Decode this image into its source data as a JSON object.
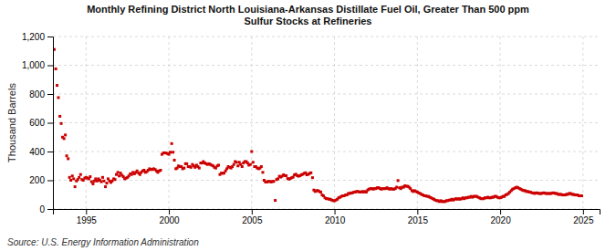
{
  "chart_data": {
    "type": "scatter",
    "title": "Monthly Refining District North Louisiana-Arkansas Distillate Fuel Oil, Greater Than 500 ppm\nSulfur Stocks at Refineries",
    "ylabel": "Thousand Barrels",
    "source": "Source: U.S. Energy Information Administration",
    "color": "#cc0000",
    "marker": "square",
    "grid": true,
    "xlim": [
      1993.0,
      2026.0
    ],
    "xticks": [
      1995,
      2000,
      2005,
      2010,
      2015,
      2020,
      2025
    ],
    "ylim": [
      0,
      1200
    ],
    "yticks": [
      0,
      200,
      400,
      600,
      800,
      {
        "value": 1000,
        "label": "1,000"
      },
      {
        "value": 1200,
        "label": "1,200"
      }
    ],
    "x": [
      1993.08,
      1993.17,
      1993.25,
      1993.33,
      1993.42,
      1993.5,
      1993.58,
      1993.67,
      1993.75,
      1993.83,
      1993.92,
      1994.0,
      1994.08,
      1994.17,
      1994.25,
      1994.33,
      1994.42,
      1994.5,
      1994.58,
      1994.67,
      1994.75,
      1994.83,
      1994.92,
      1995.0,
      1995.08,
      1995.17,
      1995.25,
      1995.33,
      1995.42,
      1995.5,
      1995.58,
      1995.67,
      1995.75,
      1995.83,
      1995.92,
      1996.0,
      1996.08,
      1996.17,
      1996.25,
      1996.33,
      1996.42,
      1996.5,
      1996.58,
      1996.67,
      1996.75,
      1996.83,
      1996.92,
      1997.0,
      1997.08,
      1997.17,
      1997.25,
      1997.33,
      1997.42,
      1997.5,
      1997.58,
      1997.67,
      1997.75,
      1997.83,
      1997.92,
      1998.0,
      1998.08,
      1998.17,
      1998.25,
      1998.33,
      1998.42,
      1998.5,
      1998.58,
      1998.67,
      1998.75,
      1998.83,
      1998.92,
      1999.0,
      1999.08,
      1999.17,
      1999.25,
      1999.33,
      1999.42,
      1999.5,
      1999.58,
      1999.67,
      1999.75,
      1999.83,
      1999.92,
      2000.0,
      2000.08,
      2000.17,
      2000.25,
      2000.33,
      2000.42,
      2000.5,
      2000.58,
      2000.67,
      2000.75,
      2000.83,
      2000.92,
      2001.0,
      2001.08,
      2001.17,
      2001.25,
      2001.33,
      2001.42,
      2001.5,
      2001.58,
      2001.67,
      2001.75,
      2001.83,
      2001.92,
      2002.0,
      2002.08,
      2002.17,
      2002.25,
      2002.33,
      2002.42,
      2002.5,
      2002.58,
      2002.67,
      2002.75,
      2002.83,
      2002.92,
      2003.0,
      2003.08,
      2003.17,
      2003.25,
      2003.33,
      2003.42,
      2003.5,
      2003.58,
      2003.67,
      2003.75,
      2003.83,
      2003.92,
      2004.0,
      2004.08,
      2004.17,
      2004.25,
      2004.33,
      2004.42,
      2004.5,
      2004.58,
      2004.67,
      2004.75,
      2004.83,
      2004.92,
      2005.0,
      2005.08,
      2005.17,
      2005.25,
      2005.33,
      2005.42,
      2005.5,
      2005.58,
      2005.67,
      2005.75,
      2005.83,
      2005.92,
      2006.0,
      2006.08,
      2006.17,
      2006.25,
      2006.33,
      2006.42,
      2006.5,
      2006.58,
      2006.67,
      2006.75,
      2006.83,
      2006.92,
      2007.0,
      2007.08,
      2007.17,
      2007.25,
      2007.33,
      2007.42,
      2007.5,
      2007.58,
      2007.67,
      2007.75,
      2007.83,
      2007.92,
      2008.0,
      2008.08,
      2008.17,
      2008.25,
      2008.33,
      2008.42,
      2008.5,
      2008.58,
      2008.67,
      2008.75,
      2008.83,
      2008.92,
      2009.0,
      2009.08,
      2009.17,
      2009.25,
      2009.33,
      2009.42,
      2009.5,
      2009.58,
      2009.67,
      2009.75,
      2009.83,
      2009.92,
      2010.0,
      2010.08,
      2010.17,
      2010.25,
      2010.33,
      2010.42,
      2010.5,
      2010.58,
      2010.67,
      2010.75,
      2010.83,
      2010.92,
      2011.0,
      2011.08,
      2011.17,
      2011.25,
      2011.33,
      2011.42,
      2011.5,
      2011.58,
      2011.67,
      2011.75,
      2011.83,
      2011.92,
      2012.0,
      2012.08,
      2012.17,
      2012.25,
      2012.33,
      2012.42,
      2012.5,
      2012.58,
      2012.67,
      2012.75,
      2012.83,
      2012.92,
      2013.0,
      2013.08,
      2013.17,
      2013.25,
      2013.33,
      2013.42,
      2013.5,
      2013.58,
      2013.67,
      2013.75,
      2013.83,
      2013.92,
      2014.0,
      2014.08,
      2014.17,
      2014.25,
      2014.33,
      2014.42,
      2014.5,
      2014.58,
      2014.67,
      2014.75,
      2014.83,
      2014.92,
      2015.0,
      2015.08,
      2015.17,
      2015.25,
      2015.33,
      2015.42,
      2015.5,
      2015.58,
      2015.67,
      2015.75,
      2015.83,
      2015.92,
      2016.0,
      2016.08,
      2016.17,
      2016.25,
      2016.33,
      2016.42,
      2016.5,
      2016.58,
      2016.67,
      2016.75,
      2016.83,
      2016.92,
      2017.0,
      2017.08,
      2017.17,
      2017.25,
      2017.33,
      2017.42,
      2017.5,
      2017.58,
      2017.67,
      2017.75,
      2017.83,
      2017.92,
      2018.0,
      2018.08,
      2018.17,
      2018.25,
      2018.33,
      2018.42,
      2018.5,
      2018.58,
      2018.67,
      2018.75,
      2018.83,
      2018.92,
      2019.0,
      2019.08,
      2019.17,
      2019.25,
      2019.33,
      2019.42,
      2019.5,
      2019.58,
      2019.67,
      2019.75,
      2019.83,
      2019.92,
      2020.0,
      2020.08,
      2020.17,
      2020.25,
      2020.33,
      2020.42,
      2020.5,
      2020.58,
      2020.67,
      2020.75,
      2020.83,
      2020.92,
      2021.0,
      2021.08,
      2021.17,
      2021.25,
      2021.33,
      2021.42,
      2021.5,
      2021.58,
      2021.67,
      2021.75,
      2021.83,
      2021.92,
      2022.0,
      2022.08,
      2022.17,
      2022.25,
      2022.33,
      2022.42,
      2022.5,
      2022.58,
      2022.67,
      2022.75,
      2022.83,
      2022.92,
      2023.0,
      2023.08,
      2023.17,
      2023.25,
      2023.33,
      2023.42,
      2023.5,
      2023.58,
      2023.67,
      2023.75,
      2023.83,
      2023.92,
      2024.0,
      2024.08,
      2024.17,
      2024.25,
      2024.33,
      2024.42,
      2024.5,
      2024.58,
      2024.67,
      2024.75,
      2024.83,
      2024.92
    ],
    "values": [
      1110,
      975,
      860,
      775,
      645,
      595,
      500,
      490,
      515,
      370,
      350,
      220,
      200,
      230,
      210,
      155,
      195,
      205,
      220,
      240,
      205,
      200,
      215,
      220,
      215,
      210,
      225,
      190,
      175,
      195,
      210,
      195,
      210,
      200,
      190,
      220,
      195,
      155,
      180,
      210,
      195,
      185,
      195,
      210,
      205,
      240,
      255,
      230,
      250,
      235,
      225,
      210,
      215,
      220,
      230,
      245,
      240,
      255,
      245,
      255,
      265,
      250,
      240,
      255,
      265,
      270,
      255,
      260,
      270,
      280,
      275,
      275,
      280,
      275,
      265,
      255,
      265,
      270,
      380,
      390,
      390,
      390,
      385,
      380,
      395,
      455,
      395,
      340,
      280,
      285,
      300,
      295,
      295,
      280,
      285,
      315,
      315,
      295,
      295,
      290,
      310,
      300,
      290,
      305,
      295,
      285,
      320,
      320,
      330,
      320,
      315,
      310,
      315,
      310,
      305,
      300,
      290,
      285,
      300,
      305,
      240,
      250,
      248,
      250,
      265,
      280,
      295,
      290,
      285,
      295,
      310,
      330,
      325,
      300,
      325,
      310,
      295,
      320,
      330,
      330,
      320,
      305,
      310,
      400,
      325,
      295,
      295,
      285,
      280,
      285,
      295,
      255,
      200,
      188,
      188,
      192,
      192,
      188,
      192,
      192,
      60,
      205,
      210,
      228,
      222,
      228,
      238,
      232,
      232,
      212,
      208,
      212,
      218,
      222,
      238,
      242,
      232,
      228,
      232,
      238,
      242,
      248,
      252,
      238,
      242,
      248,
      252,
      218,
      132,
      122,
      128,
      128,
      122,
      118,
      98,
      92,
      78,
      72,
      72,
      68,
      68,
      62,
      58,
      58,
      62,
      68,
      78,
      82,
      88,
      92,
      92,
      98,
      98,
      108,
      108,
      112,
      112,
      118,
      118,
      122,
      122,
      118,
      118,
      122,
      118,
      122,
      118,
      132,
      138,
      142,
      142,
      138,
      142,
      142,
      148,
      148,
      142,
      138,
      142,
      142,
      142,
      148,
      142,
      138,
      142,
      138,
      138,
      142,
      152,
      198,
      148,
      142,
      152,
      152,
      162,
      158,
      158,
      152,
      142,
      128,
      122,
      128,
      122,
      118,
      112,
      108,
      102,
      98,
      92,
      92,
      88,
      88,
      82,
      78,
      72,
      68,
      62,
      58,
      58,
      52,
      58,
      52,
      52,
      52,
      58,
      58,
      62,
      62,
      68,
      62,
      68,
      72,
      68,
      72,
      68,
      72,
      78,
      72,
      78,
      78,
      82,
      82,
      88,
      82,
      88,
      88,
      88,
      82,
      78,
      72,
      72,
      72,
      78,
      78,
      82,
      78,
      78,
      82,
      82,
      88,
      88,
      82,
      78,
      78,
      82,
      88,
      88,
      98,
      102,
      108,
      118,
      128,
      138,
      142,
      148,
      152,
      148,
      142,
      138,
      132,
      128,
      128,
      122,
      122,
      118,
      118,
      112,
      112,
      108,
      112,
      112,
      108,
      108,
      108,
      112,
      112,
      108,
      108,
      108,
      108,
      108,
      112,
      112,
      108,
      108,
      102,
      102,
      102,
      98,
      98,
      98,
      102,
      102,
      108,
      108,
      102,
      102,
      98,
      98,
      98,
      92,
      92,
      92
    ]
  }
}
